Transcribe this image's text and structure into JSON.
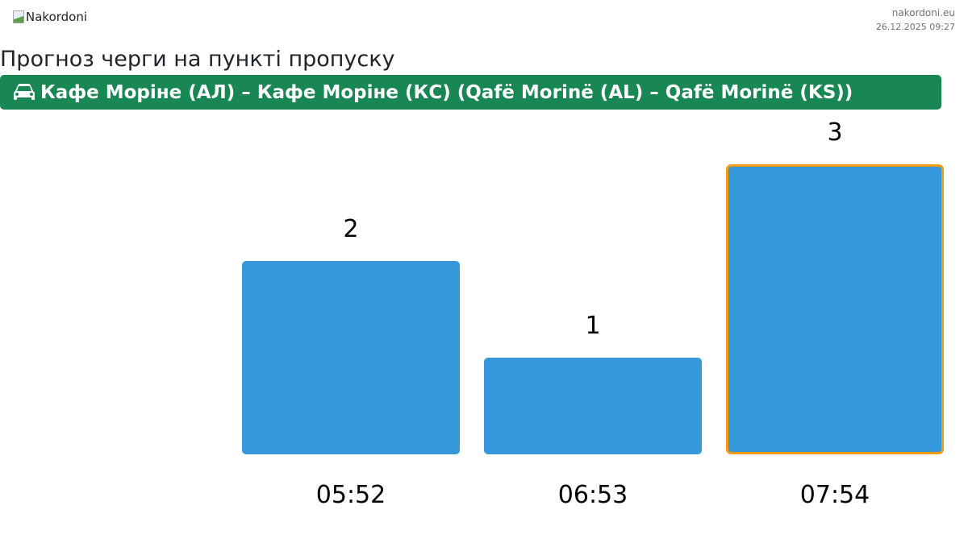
{
  "header": {
    "logo_alt": "Nakordoni",
    "site": "nakordoni.eu",
    "datetime": "26.12.2025 09:27"
  },
  "title": "Прогноз черги на пункті пропуску",
  "checkpoint": {
    "icon": "car-icon",
    "name": "Кафе Моріне (АЛ) – Кафе Моріне (КС) (Qafë Morinë (AL) – Qafë Morinë (KS))"
  },
  "colors": {
    "bar": "#3498db",
    "highlight_border": "#f39c12",
    "banner": "#198754"
  },
  "chart_data": {
    "type": "bar",
    "categories": [
      "05:52",
      "06:53",
      "07:54"
    ],
    "values": [
      2,
      1,
      3
    ],
    "highlighted_index": 2,
    "ylim": [
      0,
      3
    ],
    "grid": false
  }
}
